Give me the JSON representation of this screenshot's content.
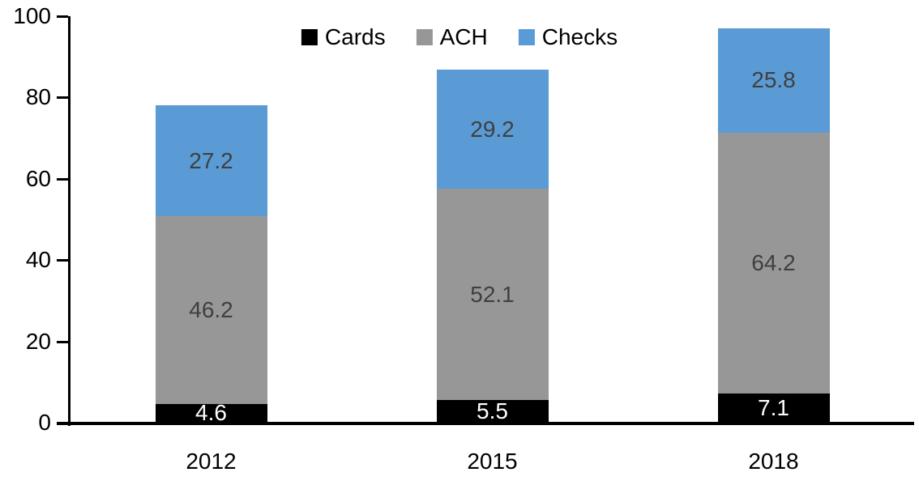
{
  "chart_data": {
    "type": "bar",
    "stacked": true,
    "title": "",
    "xlabel": "",
    "ylabel": "",
    "categories": [
      "2012",
      "2015",
      "2018"
    ],
    "series": [
      {
        "name": "Cards",
        "color": "#000000",
        "label_color": "#ffffff",
        "values": [
          4.6,
          5.5,
          7.1
        ]
      },
      {
        "name": "ACH",
        "color": "#979797",
        "label_color": "#3f3f3f",
        "values": [
          46.2,
          52.1,
          64.2
        ]
      },
      {
        "name": "Checks",
        "color": "#5b9bd5",
        "label_color": "#3f3f3f",
        "values": [
          27.2,
          29.2,
          25.8
        ]
      }
    ],
    "totals": [
      78.0,
      86.8,
      97.1
    ],
    "ylim": [
      0,
      100
    ],
    "yticks": [
      "0",
      "20",
      "40",
      "60",
      "80",
      "100"
    ],
    "grid": false,
    "legend_position": "top",
    "axis_color": "#000000",
    "background_color": "#ffffff"
  }
}
